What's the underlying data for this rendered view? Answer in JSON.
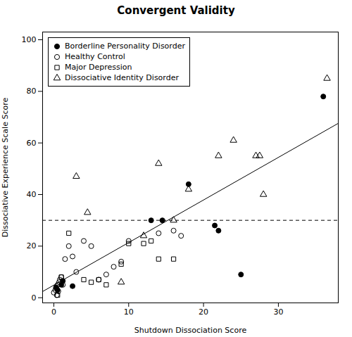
{
  "chart_data": {
    "type": "scatter",
    "title": "Convergent Validity",
    "xlabel": "Shutdown Dissociation Score",
    "ylabel": "Dissociative Experience Scale Score",
    "xlim": [
      -1.5,
      38
    ],
    "ylim": [
      -2,
      103
    ],
    "xticks": [
      0,
      10,
      20,
      30
    ],
    "yticks": [
      0,
      20,
      40,
      60,
      80,
      100
    ],
    "grid": false,
    "legend": "upper left",
    "series": [
      {
        "name": "Borderline Personality Disorder",
        "type": "scatter",
        "marker": "circle",
        "color": "black",
        "x": [
          0.3,
          0.5,
          1.0,
          1.2,
          2.5,
          13.0,
          14.5,
          18.0,
          21.5,
          22.0,
          25.0,
          36.0
        ],
        "y": [
          4.0,
          3.0,
          5.0,
          6.5,
          4.5,
          30.0,
          30.0,
          44.0,
          28.0,
          26.0,
          9.0,
          78.0
        ]
      },
      {
        "name": "Healthy Control",
        "type": "scatter",
        "marker": "open_circle",
        "color": "black",
        "x": [
          0.0,
          0.2,
          0.3,
          0.4,
          0.5,
          0.6,
          0.7,
          0.8,
          1.0,
          1.2,
          1.5,
          2.0,
          2.5,
          3.0,
          4.0,
          5.0,
          6.0,
          7.0,
          8.0,
          9.0,
          10.0,
          14.0,
          16.0,
          17.0
        ],
        "y": [
          2.0,
          3.0,
          4.0,
          1.0,
          5.0,
          2.5,
          6.0,
          7.0,
          8.0,
          5.0,
          15.0,
          20.0,
          16.0,
          10.0,
          22.0,
          20.0,
          7.0,
          9.0,
          12.0,
          14.0,
          22.0,
          25.0,
          26.0,
          24.0
        ]
      },
      {
        "name": "Major Depression",
        "type": "scatter",
        "marker": "open_square",
        "color": "black",
        "x": [
          0.5,
          1.0,
          2.0,
          4.0,
          5.0,
          6.0,
          7.0,
          9.0,
          10.0,
          12.0,
          13.0,
          14.0,
          16.0
        ],
        "y": [
          1.0,
          8.0,
          25.0,
          7.0,
          6.0,
          7.0,
          5.0,
          13.0,
          21.0,
          21.0,
          22.0,
          15.0,
          15.0
        ]
      },
      {
        "name": "Dissociative Identity Disorder",
        "type": "scatter",
        "marker": "open_triangle",
        "color": "black",
        "x": [
          3.0,
          4.5,
          9.0,
          12.0,
          14.0,
          16.0,
          18.0,
          22.0,
          24.0,
          27.0,
          27.5,
          28.0,
          36.5
        ],
        "y": [
          47.0,
          33.0,
          6.0,
          24.0,
          52.0,
          30.0,
          42.0,
          55.0,
          61.0,
          55.0,
          55.0,
          40.0,
          85.0
        ]
      },
      {
        "type": "line",
        "line_style": "solid",
        "color": "black",
        "x": [
          -1.5,
          38
        ],
        "y": [
          2.398,
          67.6
        ]
      },
      {
        "type": "hline",
        "line_style": "dashed",
        "color": "black",
        "y": 30
      }
    ]
  }
}
